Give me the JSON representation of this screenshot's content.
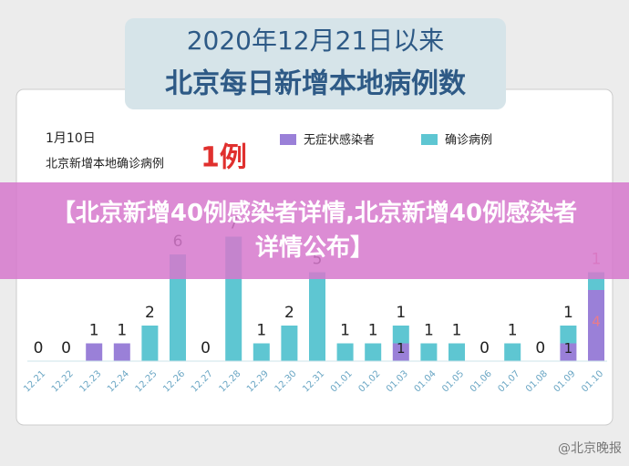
{
  "header": {
    "line1": "2020年12月21日以来",
    "line2": "北京每日新增本地病例数"
  },
  "chart_data": {
    "type": "stacked-bar",
    "note_date": "1月10日",
    "note_text": "北京新增本地确诊病例",
    "note_count": "1例",
    "categories": [
      "12.21",
      "12.22",
      "12.23",
      "12.24",
      "12.25",
      "12.26",
      "12.27",
      "12.28",
      "12.29",
      "12.30",
      "12.31",
      "01.01",
      "01.02",
      "01.03",
      "01.04",
      "01.05",
      "01.06",
      "01.07",
      "01.08",
      "01.09",
      "01.10"
    ],
    "series": [
      {
        "name": "无症状感染者",
        "color": "#9a80d8",
        "values": [
          0,
          0,
          1,
          1,
          0,
          0,
          0,
          0,
          0,
          0,
          0,
          0,
          0,
          1,
          0,
          0,
          0,
          0,
          0,
          1,
          4
        ]
      },
      {
        "name": "确诊病例",
        "color": "#5ec6d2",
        "values": [
          0,
          0,
          0,
          0,
          2,
          6,
          0,
          7,
          1,
          2,
          5,
          1,
          1,
          1,
          1,
          1,
          0,
          1,
          0,
          1,
          1
        ]
      }
    ]
  },
  "banner": {
    "text": "【北京新增40例感染者详情,北京新增40例感染者详情公布】"
  },
  "watermark": "@北京晚报"
}
